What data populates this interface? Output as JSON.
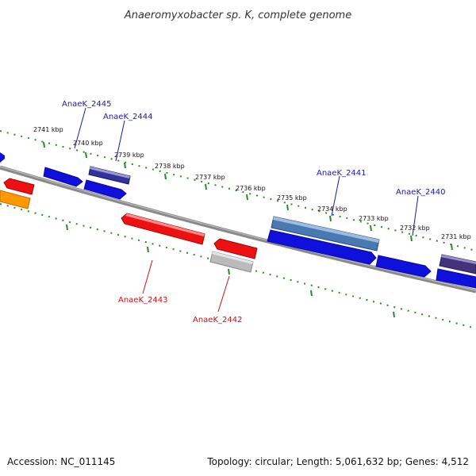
{
  "title": "Anaeromyxobacter sp. K, complete genome",
  "footer": {
    "accession": "Accession: NC_011145",
    "summary": "Topology: circular; Length: 5,061,632 bp; Genes: 4,512"
  },
  "colors": {
    "backbone": "#8a8a8a",
    "tick_ring": "#2a8a2a",
    "label_forward": "#1a1aaa",
    "label_reverse": "#cc1111"
  },
  "kbp_labels": [
    "2741 kbp",
    "2740 kbp",
    "2739 kbp",
    "2738 kbp",
    "2737 kbp",
    "2736 kbp",
    "2735 kbp",
    "2734 kbp",
    "2733 kbp",
    "2732 kbp",
    "2731 kbp"
  ],
  "gene_labels": [
    {
      "text": "AnaeK_2445",
      "strand": "forward"
    },
    {
      "text": "AnaeK_2444",
      "strand": "forward"
    },
    {
      "text": "AnaeK_2441",
      "strand": "forward"
    },
    {
      "text": "AnaeK_2440",
      "strand": "forward"
    },
    {
      "text": "AnaeK_2443",
      "strand": "reverse"
    },
    {
      "text": "AnaeK_2442",
      "strand": "reverse"
    }
  ],
  "features": [
    {
      "color": "#1010dd",
      "kind": "CDS"
    },
    {
      "color": "#1010dd",
      "kind": "CDS"
    },
    {
      "color": "#1010dd",
      "kind": "CDS"
    },
    {
      "color": "#1010dd",
      "kind": "CDS"
    },
    {
      "color": "#1010dd",
      "kind": "CDS"
    },
    {
      "color": "#1010dd",
      "kind": "CDS"
    },
    {
      "color": "#333399",
      "kind": "gene"
    },
    {
      "color": "#4a78b0",
      "kind": "gene"
    },
    {
      "color": "#44337a",
      "kind": "gene"
    },
    {
      "color": "#ee1111",
      "kind": "CDS"
    },
    {
      "color": "#ee1111",
      "kind": "CDS"
    },
    {
      "color": "#ee1111",
      "kind": "CDS"
    },
    {
      "color": "#ff9900",
      "kind": "CDS"
    },
    {
      "color": "#bbbbbb",
      "kind": "gene"
    }
  ]
}
